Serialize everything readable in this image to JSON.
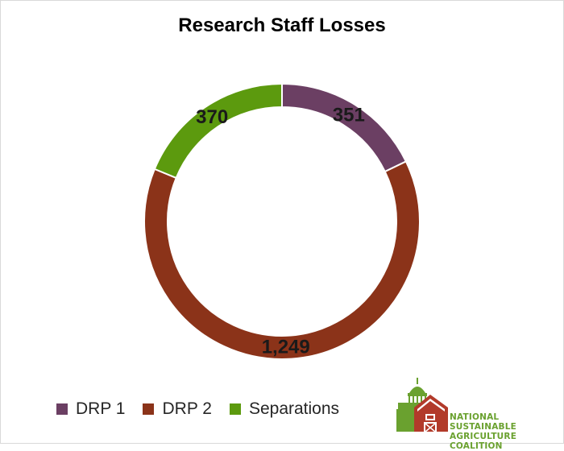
{
  "chart_data": {
    "type": "pie",
    "variant": "donut",
    "title": "Research Staff Losses",
    "categories": [
      "DRP 1",
      "DRP 2",
      "Separations"
    ],
    "values": [
      351,
      1249,
      370
    ],
    "data_labels": [
      "351",
      "1,249",
      "370"
    ],
    "colors": [
      "#6b3f63",
      "#8b3319",
      "#5c9a0e"
    ],
    "legend_position": "bottom-left"
  },
  "logo": {
    "line1": "NATIONAL SUSTAINABLE",
    "line2": "AGRICULTURE COALITION"
  }
}
